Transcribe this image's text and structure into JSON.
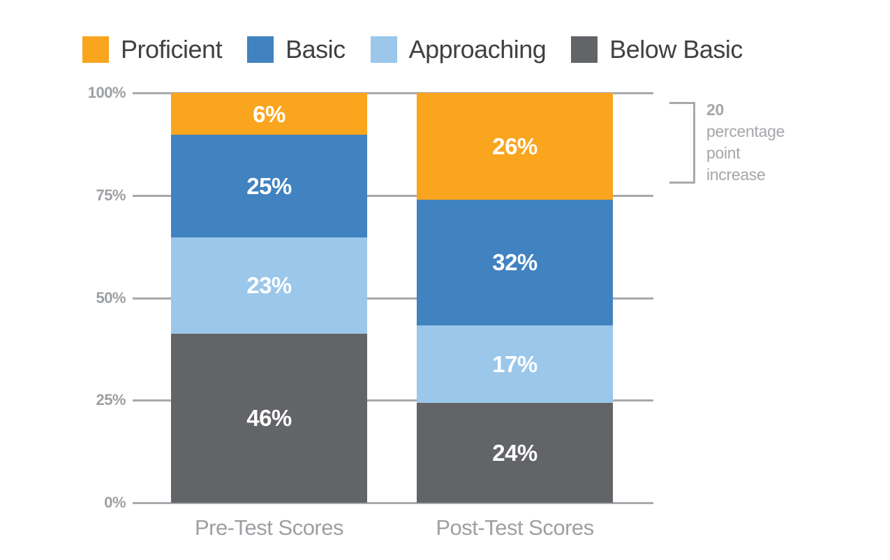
{
  "chart_data": {
    "type": "bar",
    "variant": "stacked-percentage",
    "title": "",
    "categories": [
      "Pre-Test Scores",
      "Post-Test Scores"
    ],
    "series": [
      {
        "name": "Proficient",
        "color": "#F9A51E",
        "values": [
          6,
          26
        ],
        "labels": [
          "6%",
          "26%"
        ]
      },
      {
        "name": "Basic",
        "color": "#4182C0",
        "values": [
          25,
          32
        ],
        "labels": [
          "25%",
          "32%"
        ]
      },
      {
        "name": "Approaching",
        "color": "#9BC7EA",
        "values": [
          23,
          17
        ],
        "labels": [
          "23%",
          "17%"
        ]
      },
      {
        "name": "Below Basic",
        "color": "#626467",
        "values": [
          46,
          24
        ],
        "labels": [
          "46%",
          "24%"
        ]
      }
    ],
    "stack_order_top_to_bottom": [
      "Proficient",
      "Basic",
      "Approaching",
      "Below Basic"
    ],
    "y_axis": {
      "range": [
        0,
        100
      ],
      "grid": true,
      "ticks": [
        {
          "label": "100%",
          "value": 100
        },
        {
          "label": "75%",
          "value": 75
        },
        {
          "label": "50%",
          "value": 50
        },
        {
          "label": "25%",
          "value": 25
        },
        {
          "label": "0%",
          "value": 0
        }
      ]
    },
    "legend_position": "top-left",
    "annotation": {
      "value": "20",
      "lines": [
        "percentage",
        "point",
        "increase"
      ]
    }
  },
  "colors": {
    "background": "#FFFFFF",
    "gridline": "#A7A9AC",
    "axis_text": "#9DA0A3",
    "legend_text": "#414042",
    "bar_label_text": "#FFFFFF",
    "annotation_text": "#A4A6A9",
    "bracket": "#A7A9AC"
  }
}
